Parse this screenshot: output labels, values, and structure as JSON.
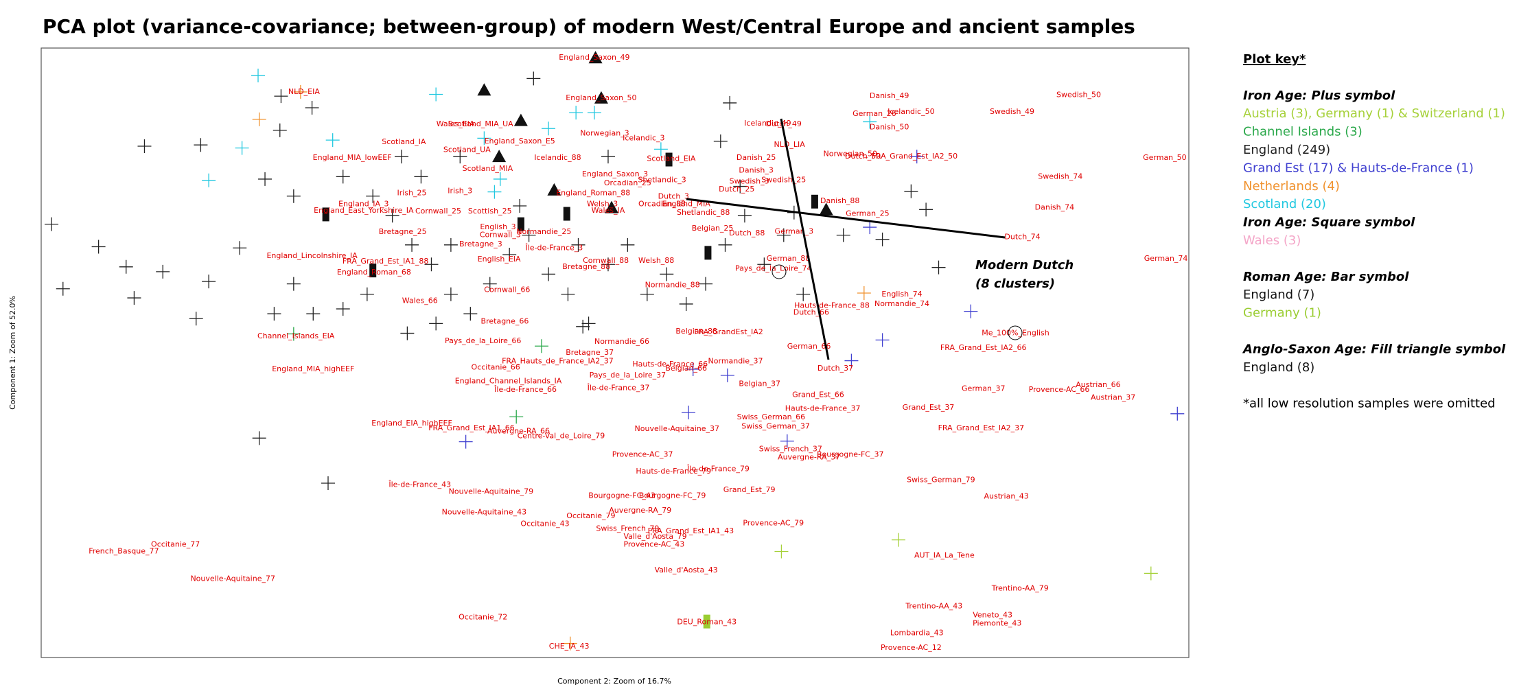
{
  "chart_data": {
    "type": "scatter",
    "title": "PCA plot (variance-covariance; between-group) of modern West/Central Europe and ancient samples",
    "xlabel": "Component 2: Zoom of 16.7%",
    "ylabel": "Component 1: Zoom of 52.0%",
    "xlim": [
      0,
      100
    ],
    "ylim": [
      0,
      100
    ],
    "annotation": [
      "Modern Dutch",
      "(8 clusters)"
    ],
    "label_color": "#e00000",
    "labels": {
      "text": [
        "England_Saxon_49",
        "NLD_EIA",
        "England_Saxon_50",
        "Wales_EIA",
        "Scotland_MIA_UA",
        "Norwegian_3",
        "Icelandic_3",
        "Icelandic_49",
        "Dutch_49",
        "Danish_49",
        "Swedish_50",
        "Swedish_49",
        "German_26",
        "Icelandic_50",
        "Danish_50",
        "NLD_LIA",
        "Norwegian_50",
        "Dutch_50",
        "FRA_Grand_Est_IA2_50",
        "German_50",
        "Swedish_74",
        "Danish_74",
        "Dutch_74",
        "German_74",
        "Scotland_IA",
        "Scotland_UA",
        "England_MIA_lowEEF",
        "England_Saxon_E5",
        "Icelandic_88",
        "Scotland_EIA",
        "Scotland_MIA",
        "England_Saxon_3",
        "Shetlandic_3",
        "Orcadian_25",
        "Danish_25",
        "Danish_3",
        "Swedish_3",
        "Swedish_25",
        "Dutch_25",
        "England_Roman_88",
        "Dutch_3",
        "Orcadian_88",
        "England_MIA",
        "Danish_88",
        "German_25",
        "Shetlandic_88",
        "Irish_25",
        "Irish_3",
        "England_IA_3",
        "Cornwall_25",
        "England_East_Yorkshire_IA",
        "Scottish_25",
        "Welsh_3",
        "English_3",
        "Belgian_25",
        "Dutch_88",
        "German_3",
        "Bretagne_25",
        "Cornwall_3",
        "Bretagne_3",
        "Normandie_25",
        "Wales_IA",
        "Île-de-France_3",
        "England_Lincolnshire_IA",
        "FRA_Grand_Est_IA1_88",
        "England_Roman_68",
        "English_EIA",
        "Cornwall_88",
        "Welsh_88",
        "Bretagne_88",
        "Normandie_88",
        "Wales_66",
        "Cornwall_66",
        "Bretagne_66",
        "Pays_de_la_Loire_66",
        "Channel_Islands_EIA",
        "England_MIA_highEEF",
        "Pays_de_la_Loire_74",
        "German_88",
        "Hauts-de-France_88",
        "Dutch_66",
        "English_74",
        "Normandie_74",
        "Me_100%_English",
        "German_66",
        "Dutch_37",
        "FRA_Grand_Est_IA2_66",
        "Belgian_88",
        "FRA_GrandEst_IA2",
        "Normandie_66",
        "Bretagne_37",
        "FRA_Hauts_de_France_IA2_37",
        "Hauts-de-France_66",
        "Normandie_37",
        "Belgian_37",
        "Belgian_66",
        "Pays_de_la_Loire_37",
        "Île-de-France_37",
        "Occitanie_66",
        "England_Channel_Islands_IA",
        "Île-de-France_66",
        "German_37",
        "Provence-AC_66",
        "Austrian_66",
        "Austrian_37",
        "Grand_Est_66",
        "Hauts-de-France_37",
        "Grand_Est_37",
        "Swiss_German_66",
        "Swiss_German_37",
        "FRA_Grand_Est_IA2_37",
        "England_EIA_highEEF",
        "FRA_Grand_Est_IA1_66",
        "Auvergne-RA_66",
        "Centre-Val_de_Loire_79",
        "Nouvelle-Aquitaine_37",
        "Swiss_French_37",
        "Auvergne-RA_37",
        "Bourgogne-FC_37",
        "Provence-AC_37",
        "Île-de-France_79",
        "Hauts-de-France_79",
        "Swiss_German_79",
        "Grand_Est_79",
        "Île-de-France_43",
        "Nouvelle-Aquitaine_79",
        "Bourgogne-FC_43",
        "Bourgogne-FC_79",
        "Austrian_43",
        "Nouvelle-Aquitaine_43",
        "Auvergne-RA_79",
        "Occitanie_79",
        "Occitanie_43",
        "Provence-AC_79",
        "Swiss_French_79",
        "FRA_Grand_Est_IA1_43",
        "Valle_d'Aosta_79",
        "Provence-AC_43",
        "AUT_IA_La_Tene",
        "Occitanie_77",
        "French_Basque_77",
        "Nouvelle-Aquitaine_77",
        "Valle_d'Aosta_43",
        "Trentino-AA_79",
        "Trentino-AA_43",
        "Veneto_43",
        "Piemonte_43",
        "Occitanie_72",
        "DEU_Roman_43",
        "Lombardia_43",
        "CHE_IA_43",
        "Provence-AC_12"
      ],
      "x": [
        48.2,
        22.9,
        48.8,
        36.1,
        38.3,
        49.1,
        52.5,
        63.3,
        64.7,
        73.9,
        90.4,
        84.6,
        72.6,
        75.8,
        73.9,
        65.2,
        70.5,
        71.6,
        76.1,
        97.9,
        88.8,
        88.3,
        85.5,
        98.0,
        31.6,
        37.1,
        27.1,
        41.7,
        45.0,
        54.9,
        38.9,
        50.0,
        54.1,
        51.1,
        62.3,
        62.3,
        61.7,
        64.7,
        60.6,
        48.1,
        55.1,
        54.1,
        56.2,
        69.6,
        72.0,
        57.7,
        32.3,
        36.5,
        28.1,
        34.6,
        28.1,
        39.1,
        48.9,
        39.8,
        58.5,
        61.5,
        65.6,
        31.5,
        40.0,
        38.3,
        43.8,
        49.4,
        44.7,
        23.6,
        30.0,
        29.0,
        39.9,
        49.2,
        53.6,
        47.5,
        55.0,
        33.0,
        40.6,
        40.4,
        38.5,
        22.2,
        23.7,
        63.8,
        65.1,
        68.9,
        67.1,
        75.0,
        75.0,
        84.9,
        66.9,
        69.2,
        82.1,
        57.1,
        59.9,
        50.6,
        47.8,
        45.0,
        54.8,
        60.5,
        62.6,
        56.2,
        51.1,
        50.3,
        39.6,
        40.7,
        42.2,
        82.1,
        88.7,
        92.1,
        93.4,
        67.7,
        68.1,
        77.3,
        63.6,
        64.0,
        81.9,
        32.3,
        37.5,
        41.6,
        45.3,
        55.4,
        65.3,
        66.9,
        70.5,
        52.4,
        59.0,
        55.1,
        78.4,
        61.7,
        33.0,
        39.2,
        50.6,
        55.0,
        84.1,
        38.6,
        52.2,
        47.9,
        43.9,
        63.8,
        51.1,
        56.6,
        53.5,
        53.4,
        78.7,
        11.7,
        7.2,
        16.7,
        56.2,
        85.3,
        77.8,
        82.9,
        83.3,
        38.5,
        58.0,
        76.3,
        46.0,
        75.8
      ],
      "y": [
        98.4,
        92.8,
        91.8,
        87.5,
        87.5,
        86.0,
        85.2,
        87.6,
        87.5,
        92.1,
        92.3,
        89.5,
        89.2,
        89.5,
        87.0,
        84.1,
        82.6,
        82.2,
        82.2,
        82.0,
        78.9,
        73.8,
        69.0,
        65.4,
        84.6,
        83.3,
        82.0,
        84.7,
        82.0,
        81.8,
        80.2,
        79.3,
        78.3,
        77.8,
        82.0,
        79.9,
        78.1,
        78.3,
        76.8,
        76.2,
        75.6,
        74.4,
        74.4,
        74.9,
        72.8,
        73.0,
        76.2,
        76.5,
        74.4,
        73.2,
        73.3,
        73.2,
        74.4,
        70.6,
        70.4,
        69.6,
        69.9,
        69.8,
        69.3,
        67.8,
        69.8,
        73.3,
        67.2,
        65.9,
        65.0,
        63.2,
        65.3,
        65.1,
        65.1,
        64.1,
        61.1,
        58.5,
        60.3,
        55.1,
        51.9,
        52.7,
        47.3,
        63.8,
        65.4,
        57.7,
        56.6,
        59.6,
        58.0,
        53.2,
        51.0,
        47.4,
        50.8,
        53.5,
        53.4,
        51.8,
        50.0,
        48.6,
        48.1,
        48.6,
        44.9,
        47.4,
        46.3,
        44.2,
        47.6,
        45.3,
        43.9,
        44.1,
        43.9,
        44.7,
        42.6,
        43.1,
        40.8,
        41.0,
        39.4,
        37.9,
        37.6,
        38.4,
        37.6,
        37.1,
        36.3,
        37.5,
        34.2,
        32.8,
        33.3,
        33.3,
        30.9,
        30.5,
        29.1,
        27.5,
        28.3,
        27.2,
        26.5,
        26.5,
        26.4,
        23.8,
        24.1,
        23.2,
        21.9,
        22.0,
        21.1,
        20.7,
        19.8,
        18.5,
        16.7,
        18.5,
        17.4,
        12.9,
        14.3,
        11.3,
        8.4,
        6.9,
        5.6,
        6.6,
        5.8,
        4.0,
        1.8,
        1.6
      ]
    },
    "key": {
      "title": "Plot key*",
      "groups": [
        {
          "heading": "Iron Age: Plus symbol",
          "marker": "plus",
          "series": [
            {
              "name": "Austria (3), Germany (1) & Switzerland (1)",
              "color": "#a6d13a",
              "x": [
                74.7,
                64.5,
                96.7
              ],
              "y": [
                19.3,
                17.4,
                13.8
              ]
            },
            {
              "name": "Channel Islands (3)",
              "color": "#2aa84a",
              "x": [
                43.6,
                41.4,
                22.0
              ],
              "y": [
                51.1,
                39.5,
                53.1
              ]
            },
            {
              "name": "England (249)",
              "color": "#222222",
              "x": [
                0.9,
                1.9,
                5.0,
                7.4,
                8.1,
                10.6,
                9.0,
                13.9,
                17.3,
                14.6,
                13.5,
                19.0,
                25.0,
                20.9,
                23.6,
                20.8,
                42.9,
                60.0,
                19.5,
                22.0,
                26.3,
                28.9,
                30.6,
                32.3,
                34.0,
                35.7,
                37.4,
                39.1,
                40.8,
                42.5,
                44.2,
                45.9,
                47.7,
                49.4,
                51.1,
                52.8,
                54.5,
                56.2,
                57.9,
                59.6,
                61.3,
                63.0,
                64.7,
                66.4,
                69.9,
                73.3,
                75.8,
                77.1,
                78.2,
                59.2,
                60.9,
                65.6,
                47.2,
                31.9,
                34.4,
                23.7,
                26.3,
                22.0,
                20.3,
                28.4,
                35.7,
                36.5,
                49.4,
                46.8,
                41.7,
                31.4,
                33.1
              ],
              "y": [
                71.1,
                60.5,
                67.4,
                64.1,
                59.0,
                63.3,
                83.9,
                84.1,
                67.2,
                61.7,
                55.6,
                36.0,
                28.6,
                92.1,
                90.2,
                86.5,
                95.0,
                91.0,
                78.5,
                75.7,
                78.9,
                75.7,
                72.5,
                67.7,
                64.5,
                59.6,
                56.4,
                61.3,
                66.1,
                69.3,
                62.9,
                59.6,
                54.8,
                64.5,
                67.7,
                59.6,
                62.9,
                58.0,
                61.3,
                67.7,
                72.5,
                64.5,
                69.3,
                59.6,
                69.3,
                68.6,
                76.5,
                73.5,
                64.0,
                84.7,
                77.3,
                73.0,
                54.3,
                53.2,
                54.8,
                56.4,
                57.2,
                61.3,
                56.4,
                59.6,
                67.7,
                82.2,
                82.2,
                67.7,
                74.1,
                82.2,
                78.9
              ]
            },
            {
              "name": "Grand Est (17) & Hauts-de-France (1)",
              "color": "#4040d0",
              "x": [
                81.0,
                73.3,
                99.0,
                70.6,
                59.8,
                56.8,
                56.4,
                37.0,
                65.0,
                76.3,
                72.2
              ],
              "y": [
                56.8,
                52.1,
                40.0,
                48.7,
                46.3,
                47.3,
                40.2,
                35.4,
                35.5,
                82.2,
                70.6
              ]
            },
            {
              "name": "Netherlands (4)",
              "color": "#f0922e",
              "x": [
                19.0,
                22.6,
                71.7,
                46.1
              ],
              "y": [
                88.3,
                92.8,
                59.8,
                2.3
              ]
            },
            {
              "name": "Scotland (20)",
              "color": "#22c8e0",
              "x": [
                18.9,
                34.4,
                25.4,
                17.5,
                14.6,
                46.6,
                48.2,
                44.2,
                38.6,
                54.0,
                72.2,
                40.0,
                39.5
              ],
              "y": [
                95.5,
                92.4,
                84.9,
                83.6,
                78.3,
                89.4,
                89.4,
                86.8,
                85.2,
                83.4,
                87.9,
                78.5,
                76.4
              ]
            }
          ]
        },
        {
          "heading": "Iron Age: Square symbol",
          "marker": "square",
          "series": [
            {
              "name": "Wales (3)",
              "color": "#f4a6c8",
              "x": [],
              "y": []
            }
          ]
        },
        {
          "heading": "Roman Age: Bar symbol",
          "marker": "bar",
          "series": [
            {
              "name": "England (7)",
              "color": "#111111",
              "x": [
                24.8,
                28.9,
                41.8,
                45.8,
                54.7,
                58.1,
                67.4
              ],
              "y": [
                72.7,
                63.5,
                71.1,
                72.8,
                81.7,
                66.4,
                74.8
              ]
            },
            {
              "name": "Germany (1)",
              "color": "#9acd32",
              "x": [
                58.0
              ],
              "y": [
                5.9
              ]
            }
          ]
        },
        {
          "heading": "Anglo-Saxon Age: Fill triangle symbol",
          "marker": "triangle",
          "series": [
            {
              "name": "England (8)",
              "color": "#111111",
              "x": [
                48.3,
                48.8,
                38.6,
                41.8,
                39.9,
                44.7,
                49.7,
                68.4
              ],
              "y": [
                98.4,
                91.8,
                93.1,
                88.1,
                82.2,
                76.7,
                73.8,
                73.5
              ]
            }
          ]
        }
      ],
      "note": "*all low resolution samples were omitted"
    }
  }
}
